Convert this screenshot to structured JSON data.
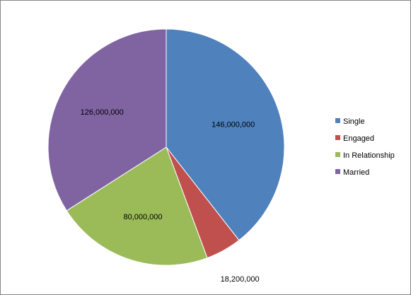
{
  "chart_data": {
    "type": "pie",
    "title": "",
    "categories": [
      "Single",
      "Engaged",
      "In Relationship",
      "Married"
    ],
    "values": [
      146000000,
      18200000,
      80000000,
      126000000
    ],
    "data_labels": [
      "146,000,000",
      "18,200,000",
      "80,000,000",
      "126,000,000"
    ],
    "colors": [
      "#4F81BD",
      "#C0504D",
      "#9BBB59",
      "#8064A2"
    ],
    "start_angle_deg": 0,
    "direction": "clockwise",
    "legend": {
      "position": "right",
      "entries": [
        "Single",
        "Engaged",
        "In Relationship",
        "Married"
      ]
    }
  }
}
